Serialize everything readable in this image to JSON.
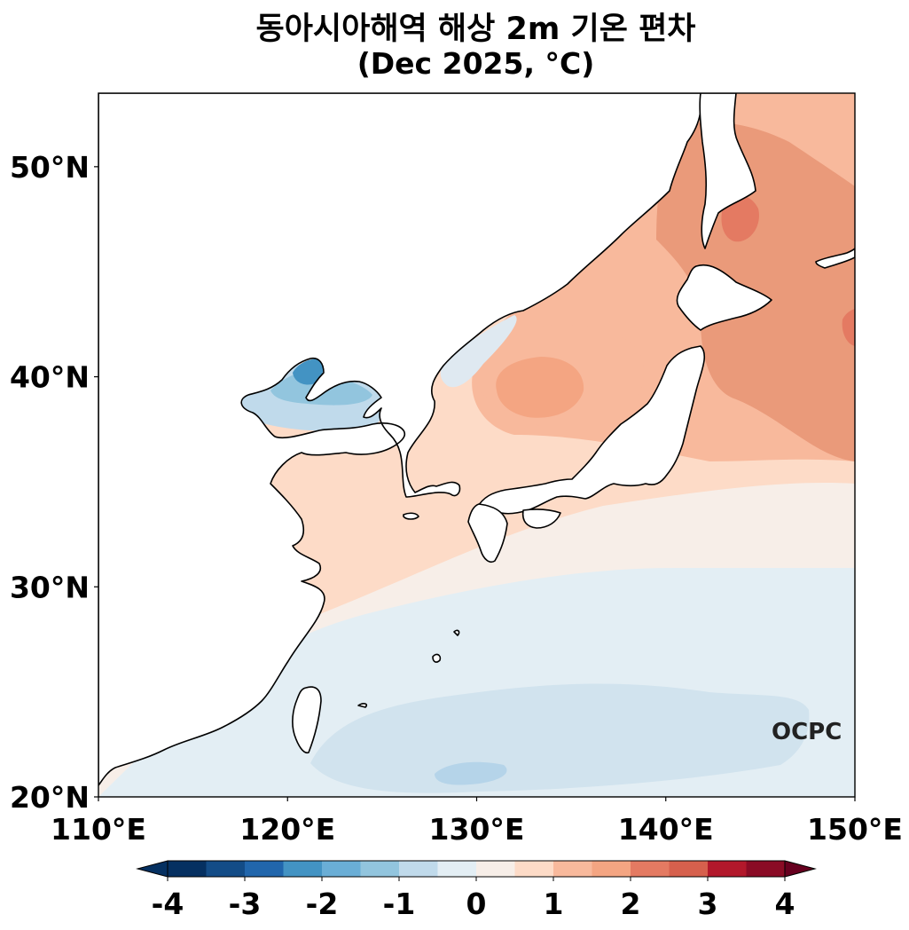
{
  "title": {
    "line1": "동아시아해역 해상 2m 기온 편차",
    "line2": "(Dec 2025, °C)"
  },
  "map": {
    "lon_range": [
      110,
      150
    ],
    "lat_range": [
      20,
      53.5
    ],
    "lon_ticks": [
      {
        "value": 110,
        "label": "110°E"
      },
      {
        "value": 120,
        "label": "120°E"
      },
      {
        "value": 130,
        "label": "130°E"
      },
      {
        "value": 140,
        "label": "140°E"
      },
      {
        "value": 150,
        "label": "150°E"
      }
    ],
    "lat_ticks": [
      {
        "value": 20,
        "label": "20°N"
      },
      {
        "value": 30,
        "label": "30°N"
      },
      {
        "value": 40,
        "label": "40°N"
      },
      {
        "value": 50,
        "label": "50°N"
      }
    ],
    "logo_text": "OCPC",
    "land_color": "#ffffff",
    "coast_color": "#000000"
  },
  "colorbar": {
    "levels": [
      -4,
      -3.5,
      -3,
      -2.5,
      -2,
      -1.5,
      -1,
      -0.5,
      0,
      0.5,
      1,
      1.5,
      2,
      2.5,
      3,
      3.5,
      4
    ],
    "tick_values": [
      -4,
      -3,
      -2,
      -1,
      0,
      1,
      2,
      3,
      4
    ],
    "tick_labels": [
      "-4",
      "-3",
      "-2",
      "-1",
      "0",
      "1",
      "2",
      "3",
      "4"
    ],
    "colors": [
      "#053061",
      "#134c87",
      "#2166ac",
      "#4393c3",
      "#6aaed6",
      "#92c5de",
      "#c0daeb",
      "#e3eef4",
      "#f7eee8",
      "#fddbc7",
      "#f8b99c",
      "#f4a582",
      "#e47a62",
      "#d6604d",
      "#b2182b",
      "#8a0b25"
    ],
    "extend_low_color": "#053061",
    "extend_high_color": "#67001f"
  }
}
